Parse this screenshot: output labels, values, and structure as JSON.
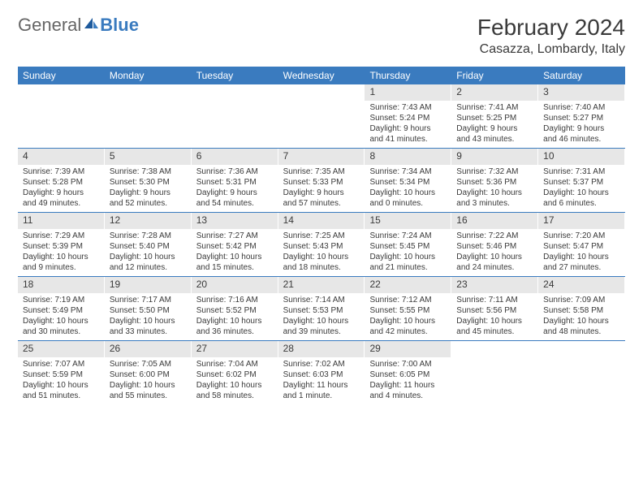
{
  "logo": {
    "text_general": "General",
    "text_blue": "Blue"
  },
  "header": {
    "month_year": "February 2024",
    "location": "Casazza, Lombardy, Italy"
  },
  "colors": {
    "header_bar": "#3a7bbf",
    "weekday_text": "#ffffff",
    "daynum_bg": "#e7e7e7",
    "text": "#3a3a3a",
    "week_border": "#3a7bbf"
  },
  "weekdays": [
    "Sunday",
    "Monday",
    "Tuesday",
    "Wednesday",
    "Thursday",
    "Friday",
    "Saturday"
  ],
  "weeks": [
    [
      {
        "empty": true
      },
      {
        "empty": true
      },
      {
        "empty": true
      },
      {
        "empty": true
      },
      {
        "day": "1",
        "sunrise": "Sunrise: 7:43 AM",
        "sunset": "Sunset: 5:24 PM",
        "daylight1": "Daylight: 9 hours",
        "daylight2": "and 41 minutes."
      },
      {
        "day": "2",
        "sunrise": "Sunrise: 7:41 AM",
        "sunset": "Sunset: 5:25 PM",
        "daylight1": "Daylight: 9 hours",
        "daylight2": "and 43 minutes."
      },
      {
        "day": "3",
        "sunrise": "Sunrise: 7:40 AM",
        "sunset": "Sunset: 5:27 PM",
        "daylight1": "Daylight: 9 hours",
        "daylight2": "and 46 minutes."
      }
    ],
    [
      {
        "day": "4",
        "sunrise": "Sunrise: 7:39 AM",
        "sunset": "Sunset: 5:28 PM",
        "daylight1": "Daylight: 9 hours",
        "daylight2": "and 49 minutes."
      },
      {
        "day": "5",
        "sunrise": "Sunrise: 7:38 AM",
        "sunset": "Sunset: 5:30 PM",
        "daylight1": "Daylight: 9 hours",
        "daylight2": "and 52 minutes."
      },
      {
        "day": "6",
        "sunrise": "Sunrise: 7:36 AM",
        "sunset": "Sunset: 5:31 PM",
        "daylight1": "Daylight: 9 hours",
        "daylight2": "and 54 minutes."
      },
      {
        "day": "7",
        "sunrise": "Sunrise: 7:35 AM",
        "sunset": "Sunset: 5:33 PM",
        "daylight1": "Daylight: 9 hours",
        "daylight2": "and 57 minutes."
      },
      {
        "day": "8",
        "sunrise": "Sunrise: 7:34 AM",
        "sunset": "Sunset: 5:34 PM",
        "daylight1": "Daylight: 10 hours",
        "daylight2": "and 0 minutes."
      },
      {
        "day": "9",
        "sunrise": "Sunrise: 7:32 AM",
        "sunset": "Sunset: 5:36 PM",
        "daylight1": "Daylight: 10 hours",
        "daylight2": "and 3 minutes."
      },
      {
        "day": "10",
        "sunrise": "Sunrise: 7:31 AM",
        "sunset": "Sunset: 5:37 PM",
        "daylight1": "Daylight: 10 hours",
        "daylight2": "and 6 minutes."
      }
    ],
    [
      {
        "day": "11",
        "sunrise": "Sunrise: 7:29 AM",
        "sunset": "Sunset: 5:39 PM",
        "daylight1": "Daylight: 10 hours",
        "daylight2": "and 9 minutes."
      },
      {
        "day": "12",
        "sunrise": "Sunrise: 7:28 AM",
        "sunset": "Sunset: 5:40 PM",
        "daylight1": "Daylight: 10 hours",
        "daylight2": "and 12 minutes."
      },
      {
        "day": "13",
        "sunrise": "Sunrise: 7:27 AM",
        "sunset": "Sunset: 5:42 PM",
        "daylight1": "Daylight: 10 hours",
        "daylight2": "and 15 minutes."
      },
      {
        "day": "14",
        "sunrise": "Sunrise: 7:25 AM",
        "sunset": "Sunset: 5:43 PM",
        "daylight1": "Daylight: 10 hours",
        "daylight2": "and 18 minutes."
      },
      {
        "day": "15",
        "sunrise": "Sunrise: 7:24 AM",
        "sunset": "Sunset: 5:45 PM",
        "daylight1": "Daylight: 10 hours",
        "daylight2": "and 21 minutes."
      },
      {
        "day": "16",
        "sunrise": "Sunrise: 7:22 AM",
        "sunset": "Sunset: 5:46 PM",
        "daylight1": "Daylight: 10 hours",
        "daylight2": "and 24 minutes."
      },
      {
        "day": "17",
        "sunrise": "Sunrise: 7:20 AM",
        "sunset": "Sunset: 5:47 PM",
        "daylight1": "Daylight: 10 hours",
        "daylight2": "and 27 minutes."
      }
    ],
    [
      {
        "day": "18",
        "sunrise": "Sunrise: 7:19 AM",
        "sunset": "Sunset: 5:49 PM",
        "daylight1": "Daylight: 10 hours",
        "daylight2": "and 30 minutes."
      },
      {
        "day": "19",
        "sunrise": "Sunrise: 7:17 AM",
        "sunset": "Sunset: 5:50 PM",
        "daylight1": "Daylight: 10 hours",
        "daylight2": "and 33 minutes."
      },
      {
        "day": "20",
        "sunrise": "Sunrise: 7:16 AM",
        "sunset": "Sunset: 5:52 PM",
        "daylight1": "Daylight: 10 hours",
        "daylight2": "and 36 minutes."
      },
      {
        "day": "21",
        "sunrise": "Sunrise: 7:14 AM",
        "sunset": "Sunset: 5:53 PM",
        "daylight1": "Daylight: 10 hours",
        "daylight2": "and 39 minutes."
      },
      {
        "day": "22",
        "sunrise": "Sunrise: 7:12 AM",
        "sunset": "Sunset: 5:55 PM",
        "daylight1": "Daylight: 10 hours",
        "daylight2": "and 42 minutes."
      },
      {
        "day": "23",
        "sunrise": "Sunrise: 7:11 AM",
        "sunset": "Sunset: 5:56 PM",
        "daylight1": "Daylight: 10 hours",
        "daylight2": "and 45 minutes."
      },
      {
        "day": "24",
        "sunrise": "Sunrise: 7:09 AM",
        "sunset": "Sunset: 5:58 PM",
        "daylight1": "Daylight: 10 hours",
        "daylight2": "and 48 minutes."
      }
    ],
    [
      {
        "day": "25",
        "sunrise": "Sunrise: 7:07 AM",
        "sunset": "Sunset: 5:59 PM",
        "daylight1": "Daylight: 10 hours",
        "daylight2": "and 51 minutes."
      },
      {
        "day": "26",
        "sunrise": "Sunrise: 7:05 AM",
        "sunset": "Sunset: 6:00 PM",
        "daylight1": "Daylight: 10 hours",
        "daylight2": "and 55 minutes."
      },
      {
        "day": "27",
        "sunrise": "Sunrise: 7:04 AM",
        "sunset": "Sunset: 6:02 PM",
        "daylight1": "Daylight: 10 hours",
        "daylight2": "and 58 minutes."
      },
      {
        "day": "28",
        "sunrise": "Sunrise: 7:02 AM",
        "sunset": "Sunset: 6:03 PM",
        "daylight1": "Daylight: 11 hours",
        "daylight2": "and 1 minute."
      },
      {
        "day": "29",
        "sunrise": "Sunrise: 7:00 AM",
        "sunset": "Sunset: 6:05 PM",
        "daylight1": "Daylight: 11 hours",
        "daylight2": "and 4 minutes."
      },
      {
        "empty": true
      },
      {
        "empty": true
      }
    ]
  ]
}
